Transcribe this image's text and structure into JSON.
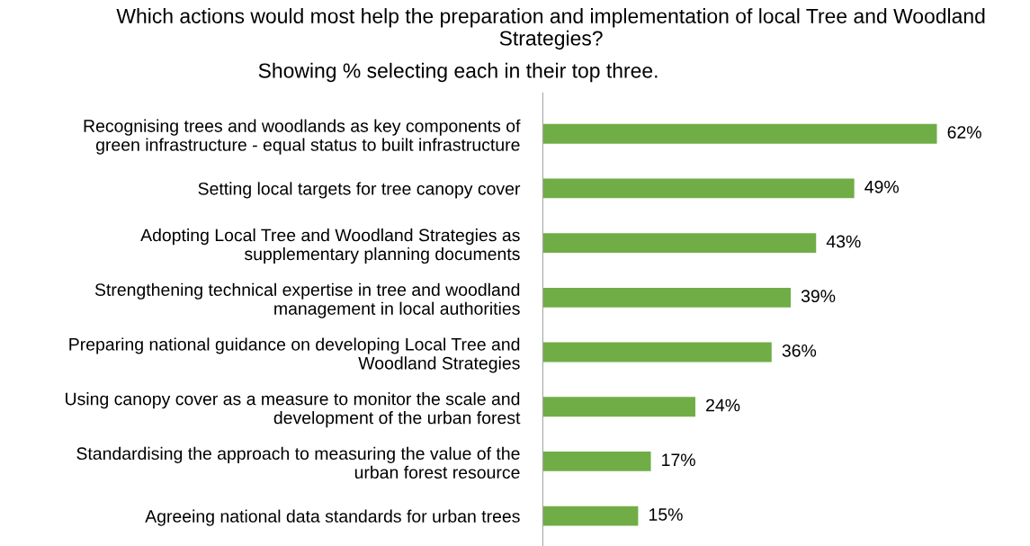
{
  "chart_data": {
    "type": "bar",
    "orientation": "horizontal",
    "title": "Which actions would most help the preparation and implementation of local Tree and Woodland Strategies?",
    "subtitle": "Showing % selecting each in their top three.",
    "categories": [
      "Recognising trees and woodlands as key components of\ngreen infrastructure - equal status to built infrastructure",
      "Setting local targets for tree canopy cover",
      "Adopting Local Tree and Woodland Strategies as\nsupplementary planning documents",
      "Strengthening technical expertise in tree and woodland\nmanagement in local authorities",
      "Preparing national guidance on developing Local Tree and\nWoodland Strategies",
      "Using canopy cover as a measure to monitor the scale and\ndevelopment of the urban forest",
      "Standardising the approach to measuring the value of the\nurban forest resource",
      "Agreeing national data standards for urban trees"
    ],
    "values": [
      62,
      49,
      43,
      39,
      36,
      24,
      17,
      15
    ],
    "value_labels": [
      "62%",
      "49%",
      "43%",
      "39%",
      "36%",
      "24%",
      "17%",
      "15%"
    ],
    "color": "#70ad47",
    "grid": false,
    "legend": false
  }
}
